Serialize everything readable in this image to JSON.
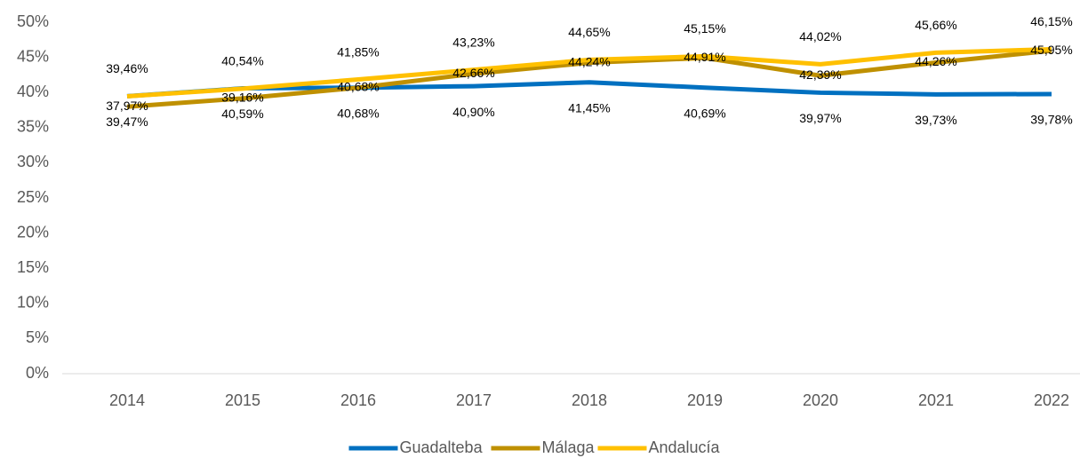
{
  "chart_data": {
    "type": "line",
    "categories": [
      "2014",
      "2015",
      "2016",
      "2017",
      "2018",
      "2019",
      "2020",
      "2021",
      "2022"
    ],
    "series": [
      {
        "name": "Guadalteba",
        "color": "#0070c0",
        "values": [
          39.47,
          40.59,
          40.68,
          40.9,
          41.45,
          40.69,
          39.97,
          39.73,
          39.78
        ],
        "value_labels": [
          "39,47%",
          "40,59%",
          "40,68%",
          "40,90%",
          "41,45%",
          "40,69%",
          "39,97%",
          "39,73%",
          "39,78%"
        ]
      },
      {
        "name": "Málaga",
        "color": "#bf9000",
        "values": [
          37.97,
          39.16,
          40.68,
          42.66,
          44.24,
          44.91,
          42.39,
          44.26,
          45.95
        ],
        "value_labels": [
          "37,97%",
          "39,16%",
          "40,68%",
          "42,66%",
          "44,24%",
          "44,91%",
          "42,39%",
          "44,26%",
          "45,95%"
        ]
      },
      {
        "name": "Andalucía",
        "color": "#ffc000",
        "values": [
          39.46,
          40.54,
          41.85,
          43.23,
          44.65,
          45.15,
          44.02,
          45.66,
          46.15
        ],
        "value_labels": [
          "39,46%",
          "40,54%",
          "41,85%",
          "43,23%",
          "44,65%",
          "45,15%",
          "44,02%",
          "45,66%",
          "46,15%"
        ]
      }
    ],
    "ylim": [
      0,
      50
    ],
    "yticks": [
      {
        "value": 0,
        "label": "0%"
      },
      {
        "value": 5,
        "label": "5%"
      },
      {
        "value": 10,
        "label": "10%"
      },
      {
        "value": 15,
        "label": "15%"
      },
      {
        "value": 20,
        "label": "20%"
      },
      {
        "value": 25,
        "label": "25%"
      },
      {
        "value": 30,
        "label": "30%"
      },
      {
        "value": 35,
        "label": "35%"
      },
      {
        "value": 40,
        "label": "40%"
      },
      {
        "value": 45,
        "label": "45%"
      },
      {
        "value": 50,
        "label": "50%"
      }
    ],
    "legend": "bottom"
  }
}
